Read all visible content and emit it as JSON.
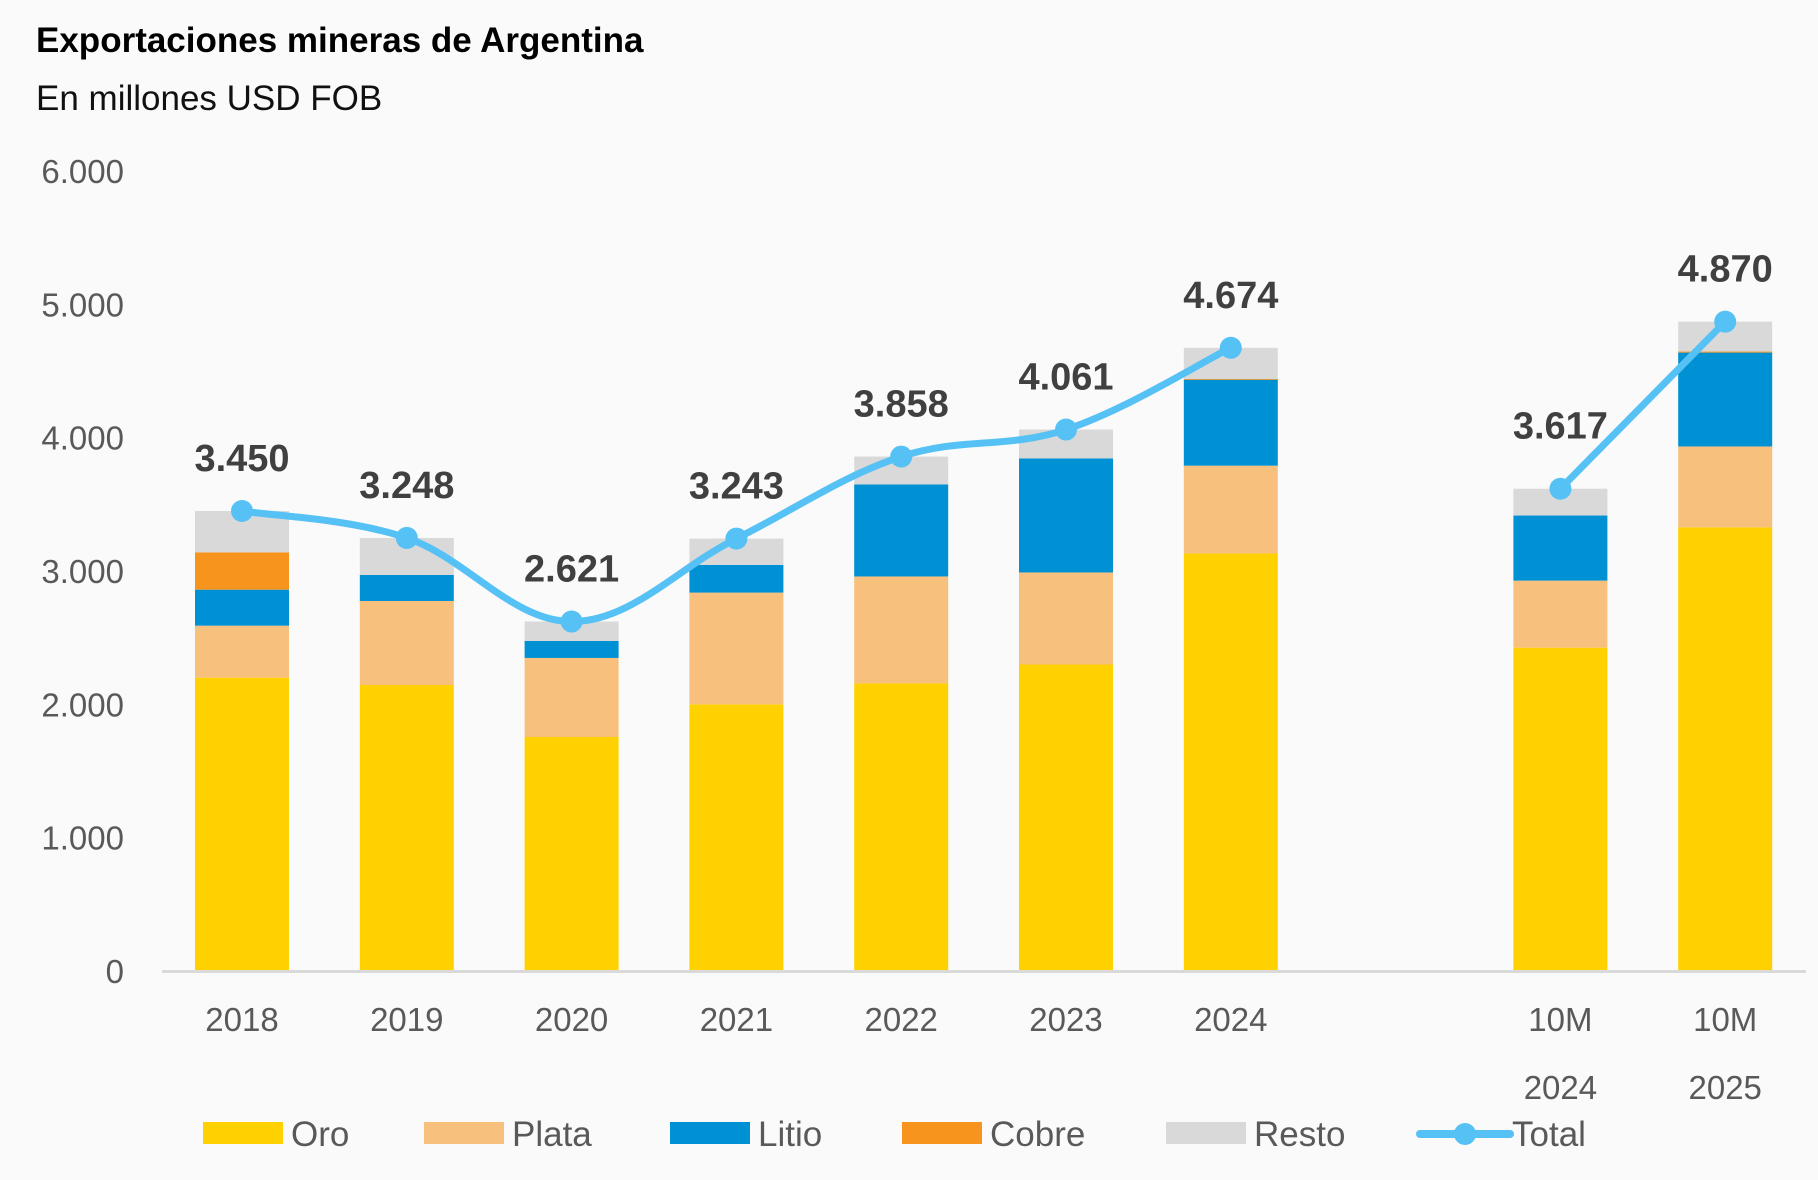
{
  "chart_data": {
    "type": "bar",
    "stacked": true,
    "title": "Exportaciones mineras de Argentina",
    "subtitle": "En millones USD FOB",
    "xlabel": "",
    "ylabel": "",
    "ylim": [
      0,
      6000
    ],
    "yticks": [
      0,
      1000,
      2000,
      3000,
      4000,
      5000,
      6000
    ],
    "ytick_labels": [
      "0",
      "1.000",
      "2.000",
      "3.000",
      "4.000",
      "5.000",
      "6.000"
    ],
    "grid": false,
    "legend_position": "bottom",
    "categories": [
      "2018",
      "2019",
      "2020",
      "2021",
      "2022",
      "2023",
      "2024",
      "",
      "10M 2024",
      "10M 2025"
    ],
    "category_labels": [
      [
        "2018"
      ],
      [
        "2019"
      ],
      [
        "2020"
      ],
      [
        "2021"
      ],
      [
        "2022"
      ],
      [
        "2023"
      ],
      [
        "2024"
      ],
      [],
      [
        "10M",
        "2024"
      ],
      [
        "10M",
        "2025"
      ]
    ],
    "series": [
      {
        "name": "Oro",
        "color": "#FFD100",
        "values": [
          2200,
          2145,
          1755,
          2000,
          2157,
          2299,
          3131,
          null,
          2425,
          3327
        ]
      },
      {
        "name": "Plata",
        "color": "#F8C07D",
        "values": [
          390,
          630,
          593,
          838,
          802,
          690,
          659,
          null,
          503,
          607
        ]
      },
      {
        "name": "Litio",
        "color": "#0091D5",
        "values": [
          270,
          195,
          128,
          208,
          690,
          855,
          645,
          null,
          488,
          704
        ]
      },
      {
        "name": "Cobre",
        "color": "#F7941E",
        "values": [
          280,
          0,
          0,
          0,
          0,
          0,
          5,
          null,
          0,
          8
        ]
      },
      {
        "name": "Resto",
        "color": "#D9D9D9",
        "values": [
          310,
          278,
          145,
          197,
          209,
          217,
          234,
          null,
          201,
          224
        ]
      }
    ],
    "line_series": {
      "name": "Total",
      "type": "line",
      "color": "#56C1F5",
      "values": [
        3450,
        3248,
        2621,
        3243,
        3858,
        4061,
        4674,
        null,
        3617,
        4870
      ],
      "labels": [
        "3.450",
        "3.248",
        "2.621",
        "3.243",
        "3.858",
        "4.061",
        "4.674",
        "",
        "3.617",
        "4.870"
      ]
    }
  },
  "legend": [
    {
      "name": "Oro",
      "kind": "box",
      "color": "#FFD100"
    },
    {
      "name": "Plata",
      "kind": "box",
      "color": "#F8C07D"
    },
    {
      "name": "Litio",
      "kind": "box",
      "color": "#0091D5"
    },
    {
      "name": "Cobre",
      "kind": "box",
      "color": "#F7941E"
    },
    {
      "name": "Resto",
      "kind": "box",
      "color": "#D9D9D9"
    },
    {
      "name": "Total",
      "kind": "line-marker",
      "color": "#56C1F5"
    }
  ]
}
